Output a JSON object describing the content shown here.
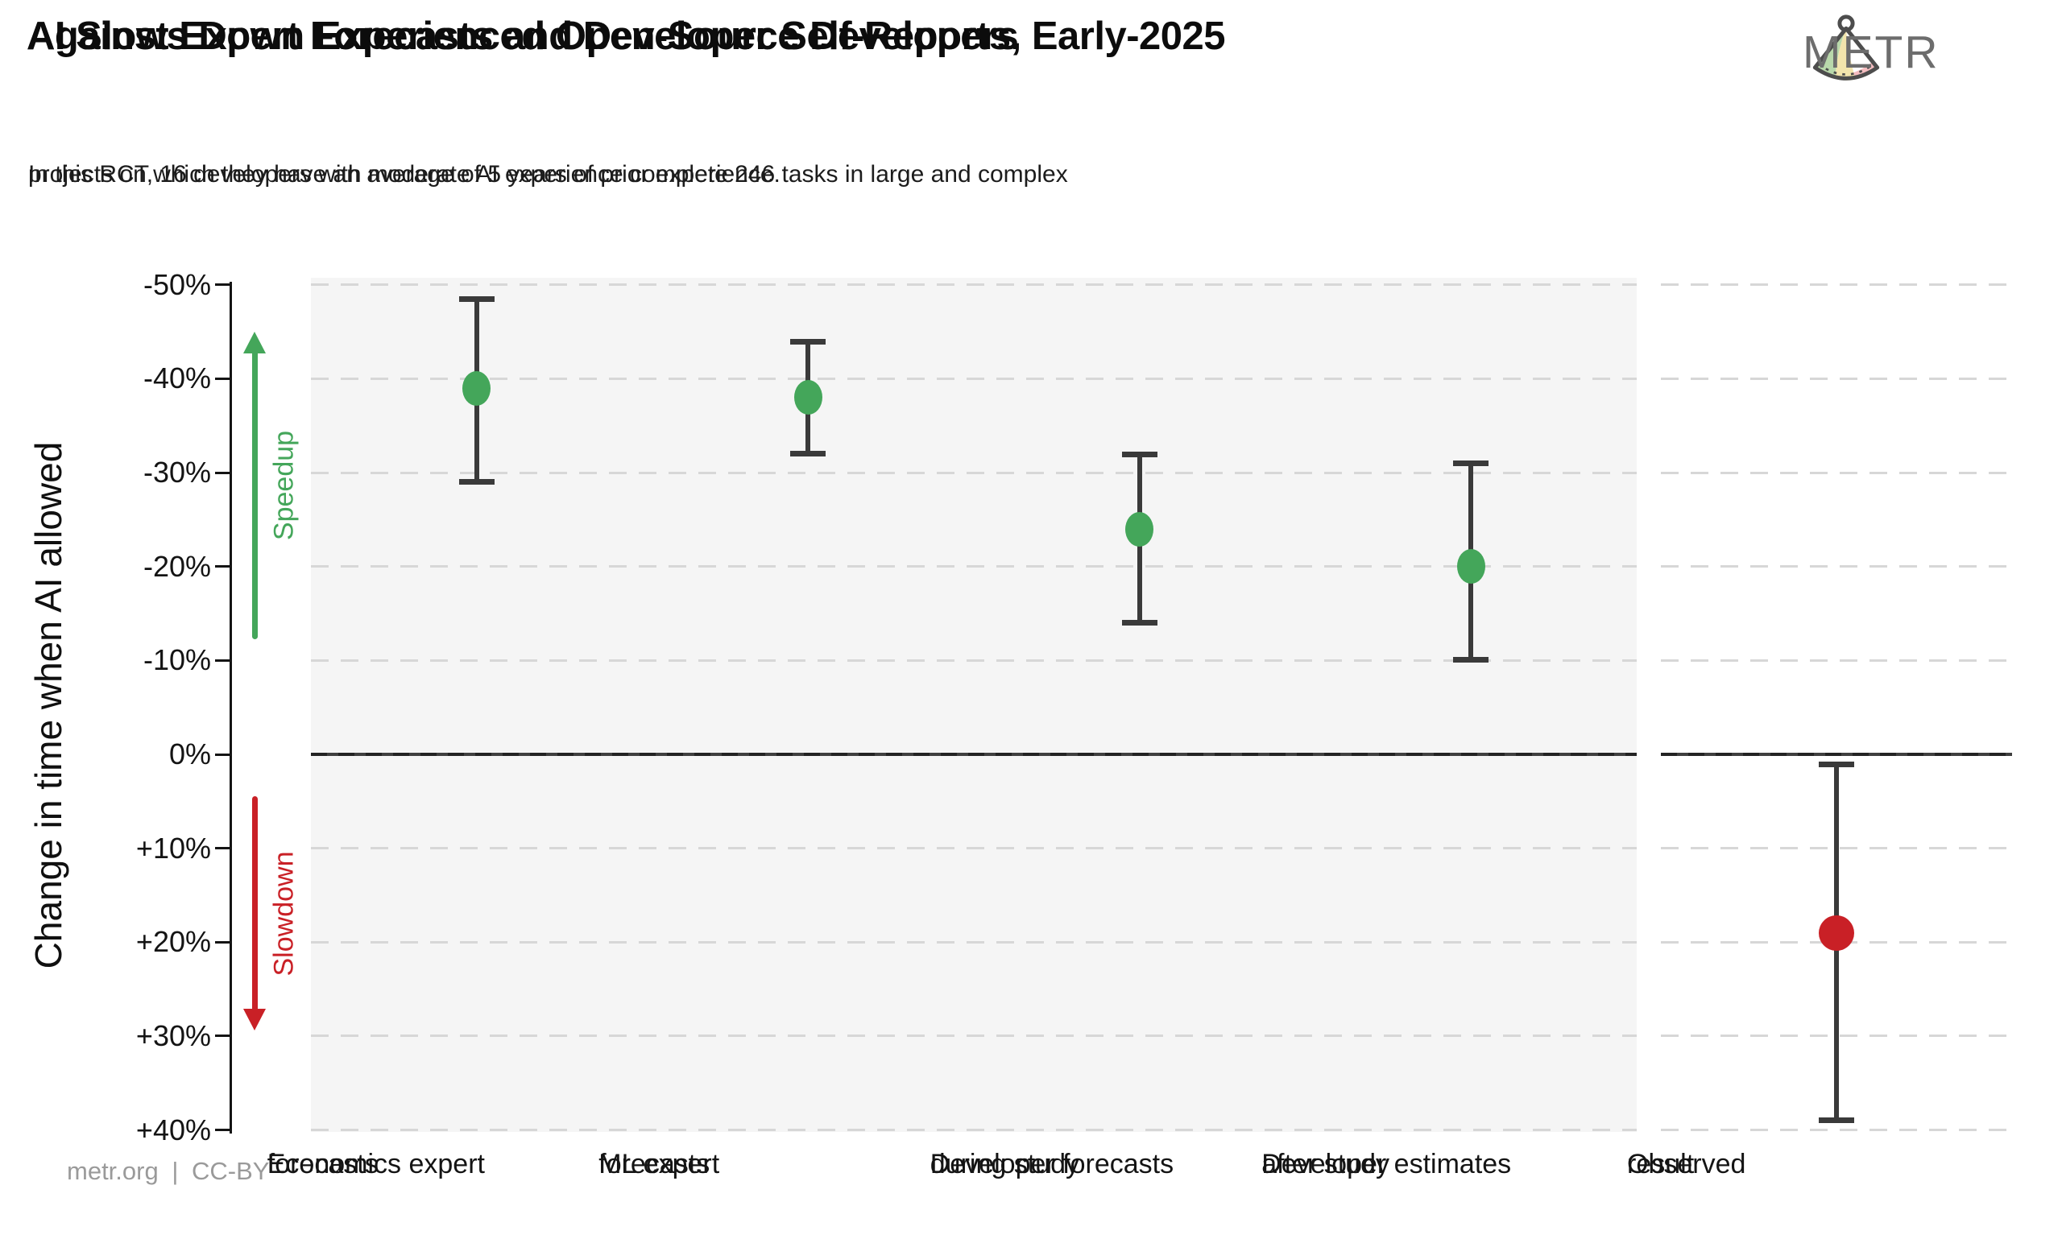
{
  "page": {
    "background": "#ffffff"
  },
  "header": {
    "title_lines": [
      "Against Expert Forecasts and Developer Self-Reports, Early-2025",
      "AI Slows Down Experienced Open-Source Developers"
    ],
    "subtitle_lines": [
      "In this RCT, 16 developers with moderate AI experience complete 246 tasks in large and complex",
      "projects on which they have an average of 5 years of prior experience."
    ],
    "logo": {
      "text": "METR"
    }
  },
  "footer": {
    "credit": "metr.org | CC-BY"
  },
  "chart_data": {
    "type": "scatter",
    "title": "Against Expert Forecasts and Developer Self-Reports, Early-2025 AI Slows Down Experienced Open-Source Developers",
    "ylabel": "Change in time when AI allowed",
    "xlabel": "",
    "y_axis": {
      "inverted": true,
      "min": -50,
      "max": 40,
      "grid": "dashed",
      "ticks": [
        {
          "value": -50,
          "label": "-50%"
        },
        {
          "value": -40,
          "label": "-40%"
        },
        {
          "value": -30,
          "label": "-30%"
        },
        {
          "value": -20,
          "label": "-20%"
        },
        {
          "value": -10,
          "label": "-10%"
        },
        {
          "value": 0,
          "label": "0%"
        },
        {
          "value": 10,
          "label": "+10%"
        },
        {
          "value": 20,
          "label": "+20%"
        },
        {
          "value": 30,
          "label": "+30%"
        },
        {
          "value": 40,
          "label": "+40%"
        }
      ]
    },
    "zero_line_value": 0,
    "annotations": [
      {
        "id": "speedup",
        "text": "Speedup",
        "color": "#44a65a",
        "direction": "up",
        "value_span": [
          -45,
          -12.3
        ]
      },
      {
        "id": "slowdown",
        "text": "Slowdown",
        "color": "#c92026",
        "direction": "down",
        "value_span": [
          4.5,
          29.4
        ]
      }
    ],
    "error_bar_color": "#3a3a3a",
    "colors": {
      "forecast_green": "#44a65a",
      "observed_red": "#c92026",
      "panel_gray": "#f5f5f5"
    },
    "points": [
      {
        "id": "economics-expert-forecasts",
        "panel": "main",
        "label_lines": [
          "Economics expert",
          "forecasts"
        ],
        "mean": -39,
        "ci": [
          -48.5,
          -29
        ],
        "color": "#44a65a"
      },
      {
        "id": "ml-expert-forecasts",
        "panel": "main",
        "label_lines": [
          "ML expert",
          "forecasts"
        ],
        "mean": -38,
        "ci": [
          -44,
          -32
        ],
        "color": "#44a65a"
      },
      {
        "id": "developer-forecasts-during-study",
        "panel": "main",
        "label_lines": [
          "Developer forecasts",
          "during study"
        ],
        "mean": -24,
        "ci": [
          -32,
          -14
        ],
        "color": "#44a65a"
      },
      {
        "id": "developer-estimates-after-study",
        "panel": "main",
        "label_lines": [
          "Developer estimates",
          "after study"
        ],
        "mean": -20,
        "ci": [
          -31,
          -10
        ],
        "color": "#44a65a"
      },
      {
        "id": "observed-result",
        "panel": "right",
        "label_lines": [
          "Observed",
          "result"
        ],
        "mean": 19,
        "ci": [
          1,
          39
        ],
        "color": "#c92026"
      }
    ],
    "legend": null
  }
}
